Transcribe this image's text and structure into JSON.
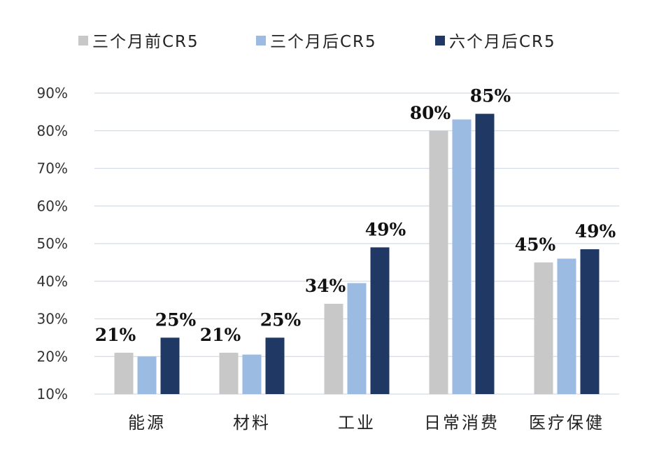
{
  "chart_data": {
    "type": "bar",
    "categories": [
      "能源",
      "材料",
      "工业",
      "日常消费",
      "医疗保健"
    ],
    "series": [
      {
        "name": "三个月前CR5",
        "color": "#c8c8c8",
        "values": [
          21,
          21,
          34,
          80,
          45
        ]
      },
      {
        "name": "三个月后CR5",
        "color": "#9bbbe3",
        "values": [
          20,
          20.5,
          39.5,
          83,
          46
        ]
      },
      {
        "name": "六个月后CR5",
        "color": "#1f3864",
        "values": [
          25,
          25,
          49,
          84.5,
          48.5
        ]
      }
    ],
    "ylim": [
      10,
      90
    ],
    "yticks": [
      "10%",
      "20%",
      "30%",
      "40%",
      "50%",
      "60%",
      "70%",
      "80%",
      "90%"
    ],
    "legend_position": "top",
    "grid": true,
    "data_labels": [
      {
        "category": 0,
        "series": 0,
        "text": "21%"
      },
      {
        "category": 0,
        "series": 2,
        "text": "25%"
      },
      {
        "category": 1,
        "series": 0,
        "text": "21%"
      },
      {
        "category": 1,
        "series": 2,
        "text": "25%"
      },
      {
        "category": 2,
        "series": 0,
        "text": "34%"
      },
      {
        "category": 2,
        "series": 2,
        "text": "49%"
      },
      {
        "category": 3,
        "series": 0,
        "text": "80%"
      },
      {
        "category": 3,
        "series": 2,
        "text": "85%"
      },
      {
        "category": 4,
        "series": 0,
        "text": "45%"
      },
      {
        "category": 4,
        "series": 2,
        "text": "49%"
      }
    ]
  }
}
